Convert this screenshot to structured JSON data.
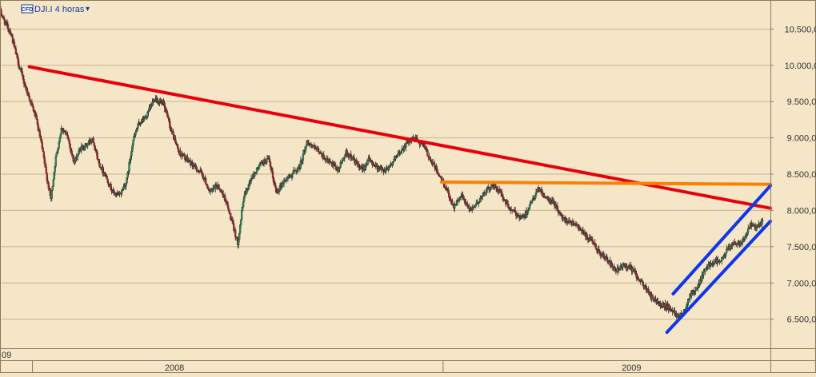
{
  "header": {
    "badge": "CFD",
    "symbol_label": "DJI.I 4 horas",
    "dropdown_glyph": "▾"
  },
  "colors": {
    "background": "#f5e6c8",
    "grid": "#c8b490",
    "candle_up": "#2e8b57",
    "candle_down": "#b22222",
    "wick": "#2a2a2a",
    "downtrend": "#e8000b",
    "resistance": "#ff8000",
    "channel": "#1036e8",
    "axis_text": "#333333"
  },
  "chart_data": {
    "type": "candlestick",
    "symbol": "DJI.I",
    "timeframe": "4 horas",
    "ylim": [
      6100,
      10900
    ],
    "xlim": [
      "2007-12-19",
      "2009-05-01"
    ],
    "y_ticks": [
      6500,
      7000,
      7500,
      8000,
      8500,
      9000,
      9500,
      10000,
      10500
    ],
    "y_tick_labels": [
      "6.500,0",
      "7.000,0",
      "7.500,0",
      "8.000,0",
      "8.500,0",
      "9.000,0",
      "9.500,0",
      "10.000,0",
      "10.500,0"
    ],
    "x_labels": [
      {
        "label": "09",
        "x": "2007-12-19"
      },
      {
        "label": "2008",
        "x": "2008-04-10"
      },
      {
        "label": "2009",
        "x": "2009-01-31"
      }
    ],
    "x_separators": [
      "2008-01-09",
      "2008-10-01"
    ],
    "grid": true,
    "price_path": [
      [
        "2007-12-19",
        10750
      ],
      [
        "2007-12-22",
        10600
      ],
      [
        "2007-12-26",
        10450
      ],
      [
        "2007-12-30",
        10100
      ],
      [
        "2008-01-03",
        9800
      ],
      [
        "2008-01-07",
        9550
      ],
      [
        "2008-01-11",
        9300
      ],
      [
        "2008-01-15",
        8900
      ],
      [
        "2008-01-18",
        8500
      ],
      [
        "2008-01-21",
        8150
      ],
      [
        "2008-01-24",
        8700
      ],
      [
        "2008-01-28",
        9150
      ],
      [
        "2008-02-01",
        9000
      ],
      [
        "2008-02-05",
        8650
      ],
      [
        "2008-02-09",
        8850
      ],
      [
        "2008-02-13",
        8900
      ],
      [
        "2008-02-17",
        9000
      ],
      [
        "2008-02-21",
        8650
      ],
      [
        "2008-02-25",
        8500
      ],
      [
        "2008-03-01",
        8250
      ],
      [
        "2008-03-05",
        8200
      ],
      [
        "2008-03-10",
        8400
      ],
      [
        "2008-03-14",
        8950
      ],
      [
        "2008-03-18",
        9200
      ],
      [
        "2008-03-23",
        9300
      ],
      [
        "2008-03-28",
        9550
      ],
      [
        "2008-04-03",
        9450
      ],
      [
        "2008-04-08",
        9100
      ],
      [
        "2008-04-13",
        8800
      ],
      [
        "2008-04-18",
        8700
      ],
      [
        "2008-04-23",
        8600
      ],
      [
        "2008-04-28",
        8500
      ],
      [
        "2008-05-03",
        8250
      ],
      [
        "2008-05-08",
        8350
      ],
      [
        "2008-05-13",
        8150
      ],
      [
        "2008-05-17",
        7850
      ],
      [
        "2008-05-21",
        7550
      ],
      [
        "2008-05-25",
        8200
      ],
      [
        "2008-05-30",
        8450
      ],
      [
        "2008-06-05",
        8650
      ],
      [
        "2008-06-10",
        8700
      ],
      [
        "2008-06-15",
        8250
      ],
      [
        "2008-06-20",
        8400
      ],
      [
        "2008-06-25",
        8500
      ],
      [
        "2008-06-30",
        8600
      ],
      [
        "2008-07-05",
        8950
      ],
      [
        "2008-07-10",
        8850
      ],
      [
        "2008-07-15",
        8750
      ],
      [
        "2008-07-20",
        8650
      ],
      [
        "2008-07-25",
        8550
      ],
      [
        "2008-07-30",
        8800
      ],
      [
        "2008-08-04",
        8700
      ],
      [
        "2008-08-09",
        8550
      ],
      [
        "2008-08-14",
        8700
      ],
      [
        "2008-08-19",
        8600
      ],
      [
        "2008-08-24",
        8550
      ],
      [
        "2008-08-29",
        8650
      ],
      [
        "2008-09-03",
        8800
      ],
      [
        "2008-09-08",
        8950
      ],
      [
        "2008-09-13",
        9000
      ],
      [
        "2008-09-18",
        8900
      ],
      [
        "2008-09-23",
        8700
      ],
      [
        "2008-09-28",
        8500
      ],
      [
        "2008-10-03",
        8300
      ],
      [
        "2008-10-08",
        8050
      ],
      [
        "2008-10-13",
        8200
      ],
      [
        "2008-10-18",
        8000
      ],
      [
        "2008-10-23",
        8100
      ],
      [
        "2008-10-28",
        8250
      ],
      [
        "2008-11-02",
        8350
      ],
      [
        "2008-11-07",
        8250
      ],
      [
        "2008-11-12",
        8050
      ],
      [
        "2008-11-17",
        7950
      ],
      [
        "2008-11-22",
        7900
      ],
      [
        "2008-11-27",
        8100
      ],
      [
        "2008-12-02",
        8300
      ],
      [
        "2008-12-07",
        8150
      ],
      [
        "2008-12-12",
        8100
      ],
      [
        "2008-12-17",
        7900
      ],
      [
        "2008-12-22",
        7850
      ],
      [
        "2008-12-27",
        7800
      ],
      [
        "2009-01-01",
        7650
      ],
      [
        "2009-01-06",
        7550
      ],
      [
        "2009-01-11",
        7400
      ],
      [
        "2009-01-16",
        7300
      ],
      [
        "2009-01-21",
        7150
      ],
      [
        "2009-01-26",
        7250
      ],
      [
        "2009-01-31",
        7200
      ],
      [
        "2009-02-05",
        7050
      ],
      [
        "2009-02-10",
        6900
      ],
      [
        "2009-02-15",
        6750
      ],
      [
        "2009-02-20",
        6700
      ],
      [
        "2009-02-25",
        6650
      ],
      [
        "2009-03-02",
        6550
      ],
      [
        "2009-03-06",
        6600
      ],
      [
        "2009-03-10",
        6850
      ],
      [
        "2009-03-14",
        6900
      ],
      [
        "2009-03-18",
        7100
      ],
      [
        "2009-03-22",
        7250
      ],
      [
        "2009-03-26",
        7300
      ],
      [
        "2009-03-30",
        7300
      ],
      [
        "2009-04-03",
        7450
      ],
      [
        "2009-04-07",
        7550
      ],
      [
        "2009-04-11",
        7550
      ],
      [
        "2009-04-15",
        7650
      ],
      [
        "2009-04-18",
        7800
      ],
      [
        "2009-04-22",
        7750
      ],
      [
        "2009-04-26",
        7850
      ]
    ],
    "trendlines": [
      {
        "kind": "downtrend",
        "from": [
          "2008-01-07",
          9980
        ],
        "to": [
          "2009-05-01",
          8030
        ]
      },
      {
        "kind": "resistance",
        "from": [
          "2008-09-30",
          8390
        ],
        "to": [
          "2009-05-01",
          8360
        ]
      },
      {
        "kind": "channel-upper",
        "from": [
          "2009-02-27",
          6850
        ],
        "to": [
          "2009-05-01",
          8340
        ]
      },
      {
        "kind": "channel-lower",
        "from": [
          "2009-02-23",
          6320
        ],
        "to": [
          "2009-05-01",
          7850
        ]
      }
    ]
  }
}
